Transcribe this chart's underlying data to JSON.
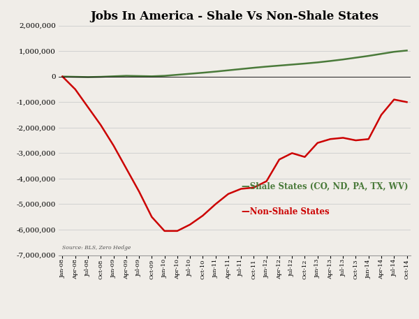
{
  "title": "Jobs In America - Shale Vs Non-Shale States",
  "source_text": "Source: BLS, Zero Hedge",
  "shale_label": "—Shale States (CO, ND, PA, TX, WV)",
  "nonshale_label": "—Non-Shale States",
  "shale_color": "#4a7a3a",
  "nonshale_color": "#cc0000",
  "background_color": "#f0ede8",
  "ylim": [
    -7000000,
    2000000
  ],
  "yticks": [
    -7000000,
    -6000000,
    -5000000,
    -4000000,
    -3000000,
    -2000000,
    -1000000,
    0,
    1000000,
    2000000
  ],
  "x_labels": [
    "Jan-08",
    "Apr-08",
    "Jul-08",
    "Oct-08",
    "Jan-09",
    "Apr-09",
    "Jul-09",
    "Oct-09",
    "Jan-10",
    "Apr-10",
    "Jul-10",
    "Oct-10",
    "Jan-11",
    "Apr-11",
    "Jul-11",
    "Oct-11",
    "Jan-12",
    "Apr-12",
    "Jul-12",
    "Oct-12",
    "Jan-13",
    "Apr-13",
    "Jul-13",
    "Oct-13",
    "Jan-14",
    "Apr-14",
    "Jul-14",
    "Oct-14"
  ],
  "shale_values": [
    0,
    -10000,
    -20000,
    -10000,
    10000,
    30000,
    20000,
    10000,
    30000,
    70000,
    110000,
    150000,
    195000,
    245000,
    295000,
    345000,
    390000,
    430000,
    470000,
    510000,
    555000,
    610000,
    670000,
    740000,
    810000,
    890000,
    970000,
    1020000
  ],
  "nonshale_values": [
    0,
    -500000,
    -1200000,
    -1900000,
    -2700000,
    -3600000,
    -4500000,
    -5500000,
    -6050000,
    -6050000,
    -5800000,
    -5450000,
    -5000000,
    -4600000,
    -4400000,
    -4350000,
    -4100000,
    -3250000,
    -3000000,
    -3150000,
    -2600000,
    -2450000,
    -2400000,
    -2500000,
    -2450000,
    -1500000,
    -900000,
    -1000000
  ]
}
